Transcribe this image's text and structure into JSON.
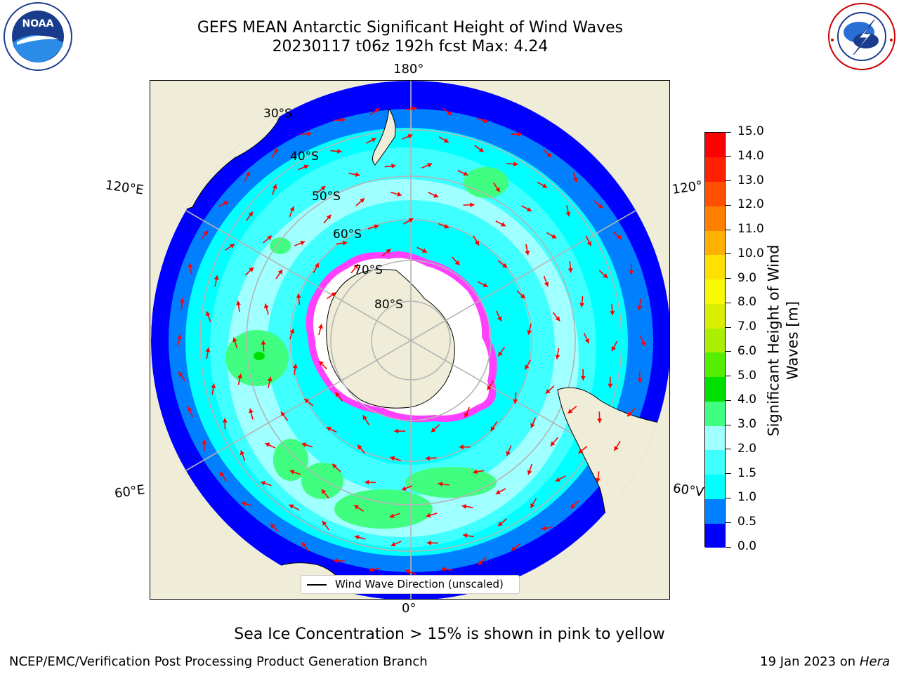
{
  "title": {
    "line1": "GEFS MEAN Antarctic Significant Height of Wind Waves",
    "line2": "20230117 t06z 192h fcst   Max: 4.24"
  },
  "logos": {
    "left": {
      "name": "noaa-logo",
      "text": "NOAA",
      "ring_text": "NATIONAL OCEANIC AND ATMOSPHERIC ADMINISTRATION · U.S. DEPARTMENT OF COMMERCE"
    },
    "right": {
      "name": "nws-logo",
      "ring_text": "NATIONAL WEATHER SERVICE"
    }
  },
  "map": {
    "projection": "south-polar-stereographic",
    "longitude_labels": {
      "top": "180°",
      "bottom": "0°",
      "upper_left": "120°E",
      "lower_left": "60°E",
      "upper_right": "120°",
      "lower_right": "60°V"
    },
    "latitude_labels": [
      "30°S",
      "40°S",
      "50°S",
      "60°S",
      "70°S",
      "80°S"
    ],
    "colors": {
      "land": "#efecd8",
      "ice_free_ocean": "#00ffff",
      "arrow": "#ff0000",
      "gridline": "#b4b4b4"
    }
  },
  "legend": {
    "text": "Wind Wave Direction (unscaled)"
  },
  "colorbar": {
    "title_line1": "Significant Height of Wind",
    "title_line2": "Waves [m]",
    "ticks": [
      "0.0",
      "0.5",
      "1.0",
      "1.5",
      "2.0",
      "3.0",
      "4.0",
      "5.0",
      "6.0",
      "7.0",
      "8.0",
      "9.0",
      "10.0",
      "11.0",
      "12.0",
      "13.0",
      "14.0",
      "15.0"
    ],
    "colors": [
      "#0000ff",
      "#0080ff",
      "#00ffff",
      "#40ffff",
      "#a0ffff",
      "#40ff80",
      "#00e000",
      "#55ee00",
      "#aaee00",
      "#d8f000",
      "#f8f800",
      "#ffe000",
      "#ffb000",
      "#ff8000",
      "#ff5000",
      "#ff2000",
      "#ff0000"
    ]
  },
  "ice_note": "Sea Ice Concentration > 15% is shown in pink to yellow",
  "footer": {
    "left": "NCEP/EMC/Verification Post Processing Product Generation Branch",
    "right_prefix": "19 Jan 2023 on ",
    "right_machine": "Hera"
  }
}
